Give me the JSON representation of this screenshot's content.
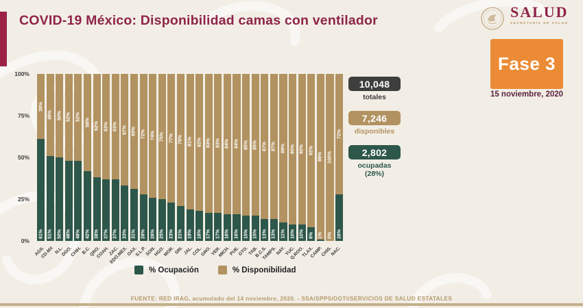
{
  "header": {
    "title": "COVID-19 México: Disponibilidad camas con ventilador",
    "logo": {
      "name": "SALUD",
      "subtitle": "SECRETARÍA DE SALUD"
    },
    "phase_badge": "Fase 3",
    "date": "15 noviembre, 2020"
  },
  "colors": {
    "accent_maroon": "#8f2449",
    "badge_orange": "#ec8b35",
    "occupied_green": "#2d574a",
    "available_tan": "#b29260",
    "totals_dark": "#3f3e3e",
    "background": "#f2eee6"
  },
  "stats": [
    {
      "value": "10,048",
      "label": "totales",
      "color": "#3f3e3e"
    },
    {
      "value": "7,246",
      "label": "disponibles",
      "color": "#b29260"
    },
    {
      "value": "2,802",
      "label": "ocupadas",
      "sublabel": "(28%)",
      "color": "#2d574a"
    }
  ],
  "chart_data": {
    "type": "bar",
    "stacked": true,
    "categories": [
      "AGS.",
      "CD.MX",
      "N.L.",
      "DGO.",
      "CHIH.",
      "B.C.",
      "QRO.",
      "COAH.",
      "ZAC.",
      "EDO.MEX.",
      "OAX.",
      "S.L.P.",
      "SON.",
      "HGO.",
      "MOR.",
      "SIN.",
      "JAL.",
      "COL.",
      "GRO.",
      "VER.",
      "MICH.",
      "PUE.",
      "GTO.",
      "TAB.",
      "B.C.S.",
      "TAMPS.",
      "NAY.",
      "YUC.",
      "Q.ROO.",
      "TLAX.",
      "CAMP.",
      "CHIS.",
      "NAC."
    ],
    "series": [
      {
        "name": "% Ocupación",
        "color": "#2d574a",
        "values": [
          61,
          51,
          50,
          48,
          48,
          42,
          38,
          37,
          37,
          33,
          31,
          28,
          26,
          25,
          23,
          21,
          19,
          18,
          17,
          17,
          16,
          16,
          15,
          15,
          13,
          13,
          11,
          10,
          10,
          8,
          1,
          0,
          28
        ]
      },
      {
        "name": "% Disponibilidad",
        "color": "#b29260",
        "values": [
          39,
          49,
          50,
          52,
          52,
          58,
          62,
          63,
          63,
          67,
          69,
          72,
          74,
          75,
          77,
          79,
          81,
          82,
          83,
          83,
          84,
          84,
          85,
          85,
          87,
          87,
          89,
          90,
          90,
          92,
          99,
          100,
          72
        ]
      }
    ],
    "y_ticks": [
      "100%",
      "75%",
      "50%",
      "25%",
      "0%"
    ],
    "ylim": [
      0,
      100
    ],
    "grid": false,
    "legend_position": "bottom"
  },
  "footer": {
    "source": "FUENTE: RED IRAG, acumulado del 14 noviembre, 2020. -  SSA/SPPS/DGTI/SERVICIOS DE SALUD ESTATALES"
  }
}
